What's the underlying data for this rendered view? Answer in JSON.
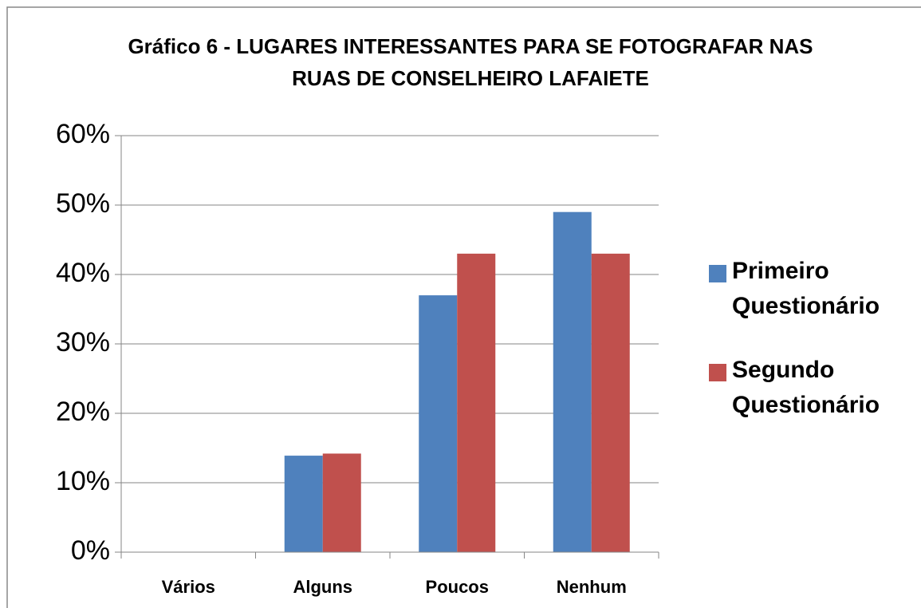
{
  "chart_data": {
    "type": "bar",
    "title": "Gráfico 6 - LUGARES INTERESSANTES PARA SE FOTOGRAFAR NAS RUAS DE CONSELHEIRO LAFAIETE",
    "categories": [
      "Vários",
      "Alguns",
      "Poucos",
      "Nenhum"
    ],
    "series": [
      {
        "name": "Primeiro Questionário",
        "color": "#4f81bd",
        "values": [
          0,
          13.9,
          37,
          49
        ]
      },
      {
        "name": "Segundo Questionário",
        "color": "#c0504d",
        "values": [
          0,
          14.2,
          43,
          43
        ]
      }
    ],
    "ylim": [
      0,
      60
    ],
    "yticks": [
      {
        "value": 0,
        "label": "0%"
      },
      {
        "value": 10,
        "label": "10%"
      },
      {
        "value": 20,
        "label": "20%"
      },
      {
        "value": 30,
        "label": "30%"
      },
      {
        "value": 40,
        "label": "40%"
      },
      {
        "value": 50,
        "label": "50%"
      },
      {
        "value": 60,
        "label": "60%"
      }
    ],
    "grid": true,
    "legend": "right"
  }
}
